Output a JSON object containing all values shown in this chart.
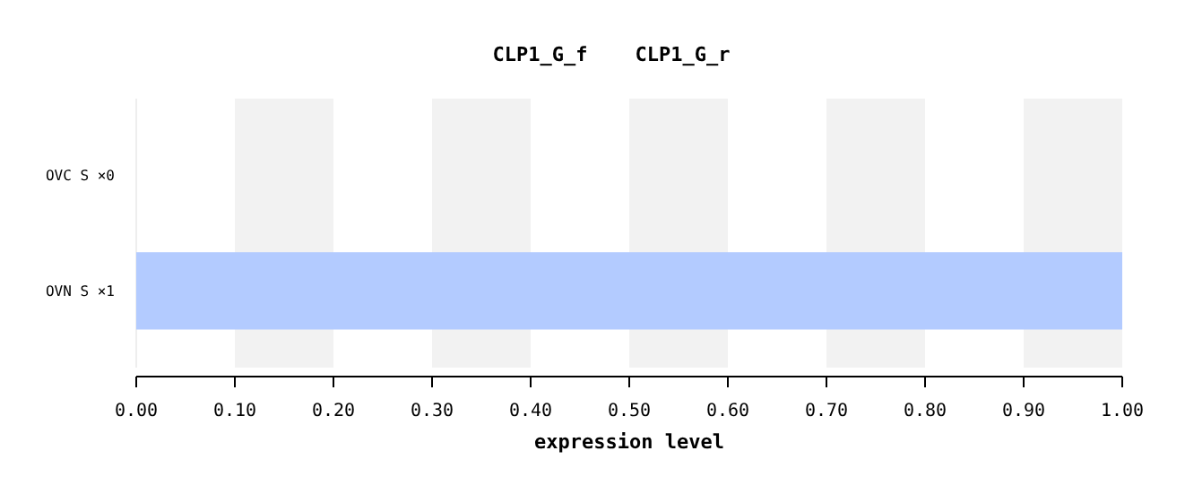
{
  "chart_data": {
    "type": "bar",
    "orientation": "horizontal",
    "title": "CLP1_G_f    CLP1_G_r",
    "xlabel": "expression level",
    "categories": [
      "OVC S ×0",
      "OVN S ×1"
    ],
    "values": [
      0,
      1
    ],
    "color": "#b3cbff",
    "xlim": [
      0,
      1
    ],
    "xticks": [
      {
        "value": 0,
        "label": "0.00"
      },
      {
        "value": 0.1,
        "label": "0.10"
      },
      {
        "value": 0.2,
        "label": "0.20"
      },
      {
        "value": 0.3,
        "label": "0.30"
      },
      {
        "value": 0.4,
        "label": "0.40"
      },
      {
        "value": 0.5,
        "label": "0.50"
      },
      {
        "value": 0.6,
        "label": "0.60"
      },
      {
        "value": 0.7,
        "label": "0.70"
      },
      {
        "value": 0.8,
        "label": "0.80"
      },
      {
        "value": 0.9,
        "label": "0.90"
      },
      {
        "value": 1,
        "label": "1.00"
      }
    ],
    "bands": [
      {
        "axis": "x",
        "from": 0.1,
        "to": 0.2,
        "color": "#f2f2f2"
      },
      {
        "axis": "x",
        "from": 0.3,
        "to": 0.4,
        "color": "#f2f2f2"
      },
      {
        "axis": "x",
        "from": 0.5,
        "to": 0.6,
        "color": "#f2f2f2"
      },
      {
        "axis": "x",
        "from": 0.7,
        "to": 0.8,
        "color": "#f2f2f2"
      },
      {
        "axis": "x",
        "from": 0.9,
        "to": 1,
        "color": "#f2f2f2"
      }
    ]
  }
}
